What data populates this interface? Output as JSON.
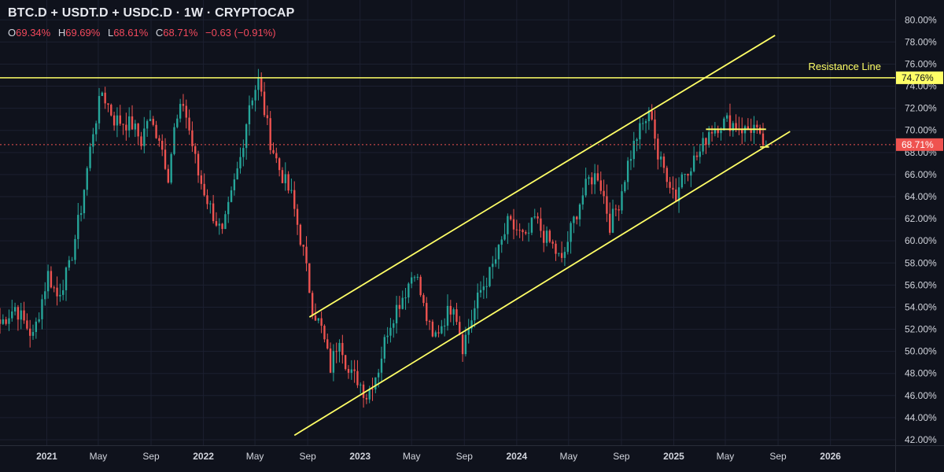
{
  "header": {
    "title": "BTC.D + USDT.D + USDC.D · 1W · CRYPTOCAP",
    "ohlc": {
      "o_label": "O",
      "o_value": "69.34%",
      "h_label": "H",
      "h_value": "69.69%",
      "l_label": "L",
      "l_value": "68.61%",
      "c_label": "C",
      "c_value": "68.71%",
      "change": "−0.63 (−0.91%)"
    }
  },
  "colors": {
    "background": "#0f121c",
    "grid": "#1c2030",
    "up": "#26a69a",
    "down": "#ef5350",
    "annotation": "#ffff66",
    "axis_text": "#d1d4dc",
    "price_line": "#ef5350"
  },
  "chart_data": {
    "type": "candlestick",
    "ylim": [
      41.5,
      81.8
    ],
    "yticks": [
      "42.00%",
      "44.00%",
      "46.00%",
      "48.00%",
      "50.00%",
      "52.00%",
      "54.00%",
      "56.00%",
      "58.00%",
      "60.00%",
      "62.00%",
      "64.00%",
      "66.00%",
      "68.00%",
      "70.00%",
      "72.00%",
      "74.00%",
      "76.00%",
      "78.00%",
      "80.00%"
    ],
    "xlim": [
      "2020-09-14",
      "2026-06-01"
    ],
    "xticks": [
      {
        "date": "2021-01-01",
        "label": "2021",
        "bold": true
      },
      {
        "date": "2021-05-01",
        "label": "May",
        "bold": false
      },
      {
        "date": "2021-09-01",
        "label": "Sep",
        "bold": false
      },
      {
        "date": "2022-01-01",
        "label": "2022",
        "bold": true
      },
      {
        "date": "2022-05-01",
        "label": "May",
        "bold": false
      },
      {
        "date": "2022-09-01",
        "label": "Sep",
        "bold": false
      },
      {
        "date": "2023-01-01",
        "label": "2023",
        "bold": true
      },
      {
        "date": "2023-05-01",
        "label": "May",
        "bold": false
      },
      {
        "date": "2023-09-01",
        "label": "Sep",
        "bold": false
      },
      {
        "date": "2024-01-01",
        "label": "2024",
        "bold": true
      },
      {
        "date": "2024-05-01",
        "label": "May",
        "bold": false
      },
      {
        "date": "2024-09-01",
        "label": "Sep",
        "bold": false
      },
      {
        "date": "2025-01-01",
        "label": "2025",
        "bold": true
      },
      {
        "date": "2025-05-01",
        "label": "May",
        "bold": false
      },
      {
        "date": "2025-09-01",
        "label": "Sep",
        "bold": false
      },
      {
        "date": "2026-01-01",
        "label": "2026",
        "bold": true
      }
    ],
    "close_series": [
      [
        "2020-09-14",
        52.5
      ],
      [
        "2020-10-19",
        54.0
      ],
      [
        "2020-11-30",
        51.3
      ],
      [
        "2021-01-04",
        57.0
      ],
      [
        "2021-01-25",
        55.0
      ],
      [
        "2021-02-22",
        57.5
      ],
      [
        "2021-03-22",
        63.0
      ],
      [
        "2021-04-19",
        70.0
      ],
      [
        "2021-05-10",
        73.5
      ],
      [
        "2021-06-07",
        71.0
      ],
      [
        "2021-07-19",
        70.5
      ],
      [
        "2021-08-09",
        69.0
      ],
      [
        "2021-08-23",
        71.0
      ],
      [
        "2021-09-20",
        69.5
      ],
      [
        "2021-10-11",
        66.0
      ],
      [
        "2021-10-25",
        70.0
      ],
      [
        "2021-11-15",
        72.5
      ],
      [
        "2021-11-29",
        70.0
      ],
      [
        "2021-12-20",
        66.0
      ],
      [
        "2022-01-17",
        63.0
      ],
      [
        "2022-02-14",
        60.5
      ],
      [
        "2022-03-07",
        64.0
      ],
      [
        "2022-03-28",
        67.5
      ],
      [
        "2022-04-18",
        72.5
      ],
      [
        "2022-05-09",
        74.5
      ],
      [
        "2022-06-06",
        69.0
      ],
      [
        "2022-06-27",
        66.5
      ],
      [
        "2022-07-25",
        64.0
      ],
      [
        "2022-08-22",
        59.0
      ],
      [
        "2022-09-12",
        54.0
      ],
      [
        "2022-10-03",
        52.0
      ],
      [
        "2022-10-24",
        48.5
      ],
      [
        "2022-11-14",
        51.5
      ],
      [
        "2022-12-05",
        48.0
      ],
      [
        "2022-12-26",
        47.5
      ],
      [
        "2023-01-16",
        46.0
      ],
      [
        "2023-02-13",
        48.5
      ],
      [
        "2023-03-06",
        52.0
      ],
      [
        "2023-03-27",
        54.0
      ],
      [
        "2023-04-17",
        55.5
      ],
      [
        "2023-05-08",
        57.5
      ],
      [
        "2023-05-29",
        54.0
      ],
      [
        "2023-06-19",
        51.0
      ],
      [
        "2023-07-10",
        52.5
      ],
      [
        "2023-08-07",
        54.5
      ],
      [
        "2023-08-28",
        50.5
      ],
      [
        "2023-09-18",
        53.0
      ],
      [
        "2023-10-09",
        55.5
      ],
      [
        "2023-10-30",
        57.0
      ],
      [
        "2023-11-20",
        59.0
      ],
      [
        "2023-12-11",
        61.5
      ],
      [
        "2024-01-01",
        61.0
      ],
      [
        "2024-01-22",
        60.0
      ],
      [
        "2024-02-12",
        62.0
      ],
      [
        "2024-03-04",
        60.5
      ],
      [
        "2024-03-25",
        59.5
      ],
      [
        "2024-04-15",
        58.0
      ],
      [
        "2024-05-06",
        61.0
      ],
      [
        "2024-05-27",
        63.5
      ],
      [
        "2024-06-17",
        65.5
      ],
      [
        "2024-07-08",
        66.0
      ],
      [
        "2024-07-22",
        64.0
      ],
      [
        "2024-08-05",
        61.5
      ],
      [
        "2024-08-26",
        63.5
      ],
      [
        "2024-09-16",
        67.0
      ],
      [
        "2024-10-07",
        69.5
      ],
      [
        "2024-10-28",
        71.0
      ],
      [
        "2024-11-11",
        71.5
      ],
      [
        "2024-11-25",
        67.5
      ],
      [
        "2024-12-16",
        66.0
      ],
      [
        "2025-01-06",
        64.0
      ],
      [
        "2025-01-20",
        66.0
      ],
      [
        "2025-02-10",
        67.0
      ],
      [
        "2025-03-03",
        68.0
      ],
      [
        "2025-03-24",
        70.0
      ],
      [
        "2025-04-14",
        70.5
      ],
      [
        "2025-05-05",
        70.8
      ],
      [
        "2025-05-26",
        70.5
      ],
      [
        "2025-06-16",
        70.0
      ],
      [
        "2025-07-07",
        70.3
      ],
      [
        "2025-07-21",
        69.0
      ],
      [
        "2025-08-04",
        68.7
      ]
    ],
    "current": {
      "value": 68.71,
      "label": "68.71%"
    },
    "annotations": {
      "resistance": {
        "y": 74.76,
        "label": "Resistance Line",
        "value_label": "74.76%"
      },
      "channel_upper": [
        [
          "2022-09-05",
          53.1
        ],
        [
          "2025-08-25",
          78.6
        ]
      ],
      "channel_lower": [
        [
          "2022-08-01",
          42.4
        ],
        [
          "2025-09-29",
          69.9
        ]
      ],
      "range_top": [
        [
          "2025-03-17",
          70.1
        ],
        [
          "2025-08-04",
          70.1
        ]
      ],
      "support_tick": [
        [
          "2025-07-21",
          68.5
        ],
        [
          "2025-08-11",
          68.5
        ]
      ]
    }
  }
}
